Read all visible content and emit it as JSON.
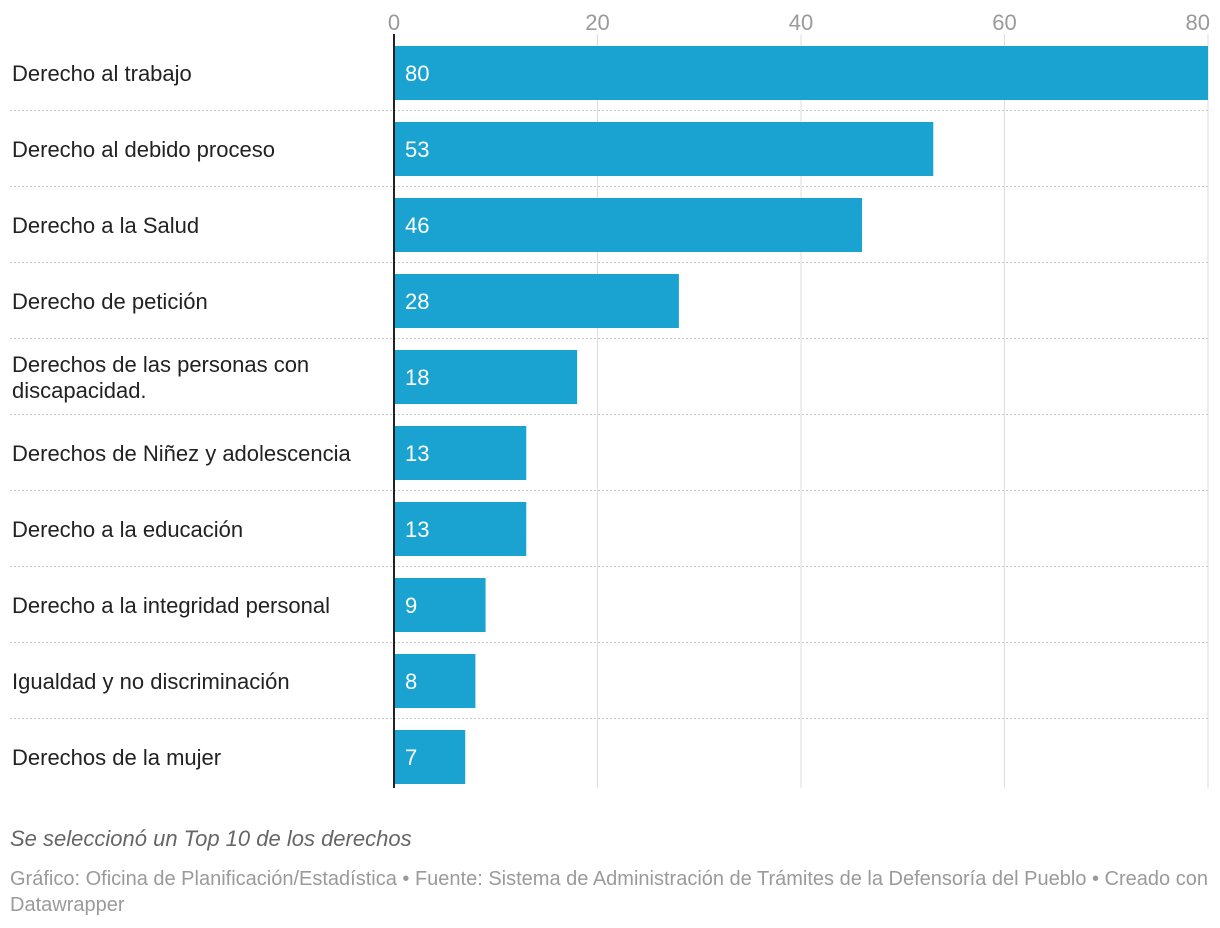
{
  "colors": {
    "bar": "#1aa3d1",
    "grid": "#dddddd",
    "separator": "#c8c8c8",
    "axis": "#222222"
  },
  "chart_data": {
    "type": "bar",
    "orientation": "horizontal",
    "categories": [
      [
        "Derecho al trabajo"
      ],
      [
        "Derecho al debido proceso"
      ],
      [
        "Derecho a la Salud"
      ],
      [
        "Derecho de petición"
      ],
      [
        "Derechos de las personas con",
        "discapacidad."
      ],
      [
        "Derechos de Niñez y adolescencia"
      ],
      [
        "Derecho a la educación"
      ],
      [
        "Derecho a la integridad personal"
      ],
      [
        "Igualdad y no discriminación"
      ],
      [
        "Derechos de la mujer"
      ]
    ],
    "values": [
      80,
      53,
      46,
      28,
      18,
      13,
      13,
      9,
      8,
      7
    ],
    "data_labels": [
      "80",
      "53",
      "46",
      "28",
      "18",
      "13",
      "13",
      "9",
      "8",
      "7"
    ],
    "xlim": [
      0,
      80
    ],
    "x_ticks": [
      0,
      20,
      40,
      60,
      80
    ],
    "x_tick_labels": [
      "0",
      "20",
      "40",
      "60",
      "80"
    ],
    "axis_position": "top",
    "grid": true,
    "legend": "none"
  },
  "notes": {
    "description": "Se seleccionó un Top 10 de los derechos",
    "footer": "Gráfico: Oficina de Planificación/Estadística • Fuente: Sistema de Administración de Trámites de la Defensoría del Pueblo • Creado con Datawrapper"
  }
}
